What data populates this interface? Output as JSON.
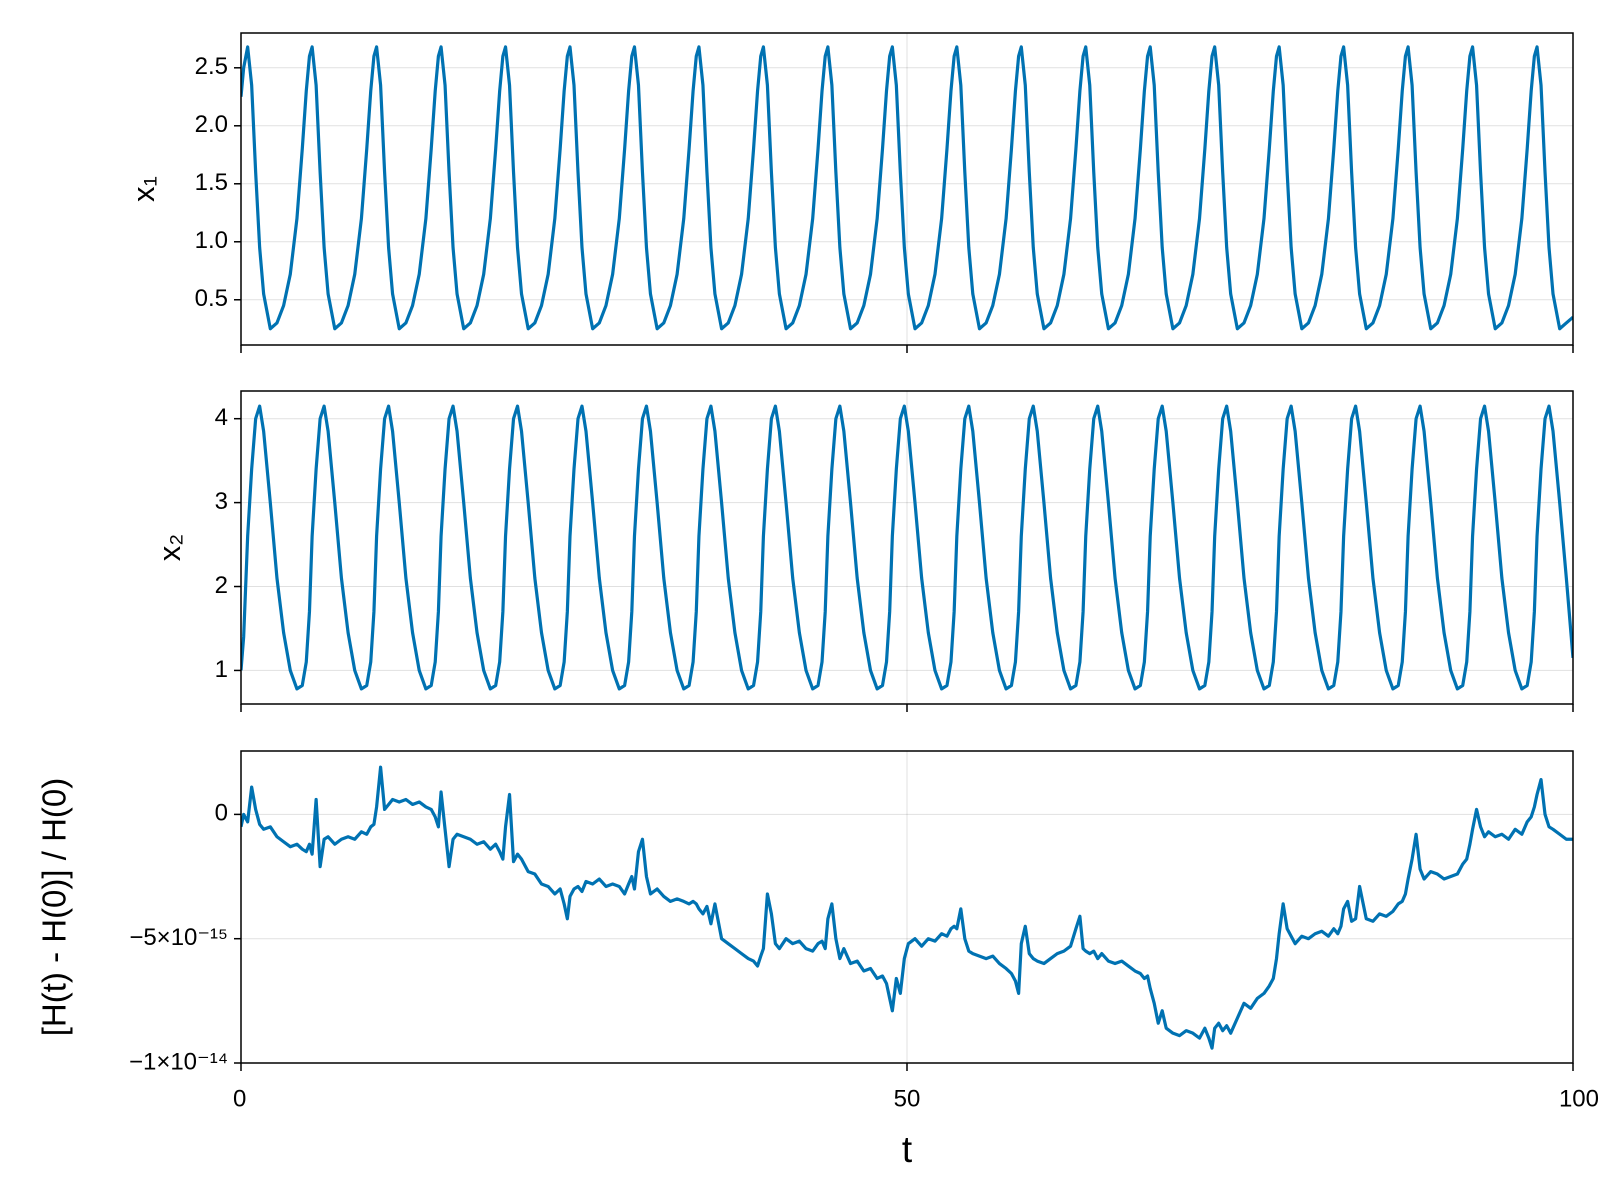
{
  "chart_data": {
    "type": "line",
    "color": "#0072b2",
    "grid": true,
    "xlabel": "t",
    "xlim": [
      0,
      100
    ],
    "xticks": [
      0,
      50,
      100
    ],
    "x": [
      0,
      0.2,
      0.5,
      0.8,
      1.1,
      1.4,
      1.7,
      2.2,
      2.7,
      3.2,
      3.7,
      4.2,
      4.6,
      4.9,
      5.14,
      5.34,
      5.64,
      5.94,
      6.24,
      6.54,
      7.04,
      7.54,
      8.04,
      8.54,
      9.04,
      9.44,
      9.74,
      9.98,
      10.18,
      10.48,
      10.78,
      11.08,
      11.38,
      11.88,
      12.38,
      12.88,
      13.38,
      13.88,
      14.28,
      14.58,
      14.82,
      15.02,
      15.32,
      15.62,
      15.92,
      16.22,
      16.72,
      17.22,
      17.72,
      18.22,
      18.72,
      19.12,
      19.42,
      19.66,
      19.86,
      20.16,
      20.46,
      20.76,
      21.06,
      21.56,
      22.06,
      22.56,
      23.06,
      23.56,
      23.96,
      24.26,
      24.5,
      24.7,
      25,
      25.3,
      25.6,
      25.9,
      26.4,
      26.9,
      27.4,
      27.9,
      28.4,
      28.8,
      29.1,
      29.34,
      29.54,
      29.84,
      30.14,
      30.44,
      30.74,
      31.24,
      31.74,
      32.24,
      32.74,
      33.24,
      33.64,
      33.94,
      34.18,
      34.38,
      34.68,
      34.98,
      35.28,
      35.58,
      36.08,
      36.58,
      37.08,
      37.58,
      38.08,
      38.48,
      38.78,
      39.02,
      39.22,
      39.52,
      39.82,
      40.12,
      40.42,
      40.92,
      41.42,
      41.92,
      42.42,
      42.92,
      43.32,
      43.62,
      43.86,
      44.06,
      44.36,
      44.66,
      44.96,
      45.26,
      45.76,
      46.26,
      46.76,
      47.26,
      47.76,
      48.16,
      48.46,
      48.7,
      48.9,
      49.2,
      49.5,
      49.8,
      50.1,
      50.6,
      51.1,
      51.6,
      52.1,
      52.6,
      53,
      53.3,
      53.54,
      53.74,
      54.04,
      54.34,
      54.64,
      54.94,
      55.44,
      55.94,
      56.44,
      56.94,
      57.44,
      57.84,
      58.14,
      58.38,
      58.58,
      58.88,
      59.18,
      59.48,
      59.78,
      60.28,
      60.78,
      61.28,
      61.78,
      62.28,
      62.68,
      62.98,
      63.22,
      63.42,
      63.72,
      64.02,
      64.32,
      64.62,
      65.12,
      65.62,
      66.12,
      66.62,
      67.12,
      67.52,
      67.82,
      68.06,
      68.26,
      68.56,
      68.86,
      69.16,
      69.46,
      69.96,
      70.46,
      70.96,
      71.46,
      71.96,
      72.36,
      72.66,
      72.9,
      73.1,
      73.4,
      73.7,
      74,
      74.3,
      74.8,
      75.3,
      75.8,
      76.3,
      76.8,
      77.2,
      77.5,
      77.74,
      77.94,
      78.24,
      78.54,
      78.84,
      79.14,
      79.64,
      80.14,
      80.64,
      81.14,
      81.64,
      82.04,
      82.34,
      82.58,
      82.78,
      83.08,
      83.38,
      83.68,
      83.98,
      84.48,
      84.98,
      85.48,
      85.98,
      86.48,
      86.88,
      87.18,
      87.42,
      87.62,
      87.92,
      88.22,
      88.52,
      88.82,
      89.32,
      89.82,
      90.32,
      90.82,
      91.32,
      91.72,
      92.02,
      92.26,
      92.46,
      92.76,
      93.06,
      93.36,
      93.66,
      94.16,
      94.66,
      95.16,
      95.66,
      96.16,
      96.56,
      96.86,
      97.1,
      97.3,
      97.6,
      97.9,
      98.2,
      98.5,
      99,
      99.5,
      100
    ],
    "panels": [
      {
        "ylabel": "x₁",
        "ylim": [
          0.11,
          2.8
        ],
        "yticks": [
          0.5,
          {
            "value": 1,
            "label": "1.0"
          },
          1.5,
          {
            "value": 2,
            "label": "2.0"
          },
          2.5
        ],
        "values": [
          2.25,
          2.5,
          2.68,
          2.35,
          1.6,
          0.95,
          0.55,
          0.25,
          0.3,
          0.45,
          0.72,
          1.2,
          1.8,
          2.3,
          2.6,
          2.68,
          2.35,
          1.6,
          0.95,
          0.55,
          0.25,
          0.3,
          0.45,
          0.72,
          1.2,
          1.8,
          2.3,
          2.6,
          2.68,
          2.35,
          1.6,
          0.95,
          0.55,
          0.25,
          0.3,
          0.45,
          0.72,
          1.2,
          1.8,
          2.3,
          2.6,
          2.68,
          2.35,
          1.6,
          0.95,
          0.55,
          0.25,
          0.3,
          0.45,
          0.72,
          1.2,
          1.8,
          2.3,
          2.6,
          2.68,
          2.35,
          1.6,
          0.95,
          0.55,
          0.25,
          0.3,
          0.45,
          0.72,
          1.2,
          1.8,
          2.3,
          2.6,
          2.68,
          2.35,
          1.6,
          0.95,
          0.55,
          0.25,
          0.3,
          0.45,
          0.72,
          1.2,
          1.8,
          2.3,
          2.6,
          2.68,
          2.35,
          1.6,
          0.95,
          0.55,
          0.25,
          0.3,
          0.45,
          0.72,
          1.2,
          1.8,
          2.3,
          2.6,
          2.68,
          2.35,
          1.6,
          0.95,
          0.55,
          0.25,
          0.3,
          0.45,
          0.72,
          1.2,
          1.8,
          2.3,
          2.6,
          2.68,
          2.35,
          1.6,
          0.95,
          0.55,
          0.25,
          0.3,
          0.45,
          0.72,
          1.2,
          1.8,
          2.3,
          2.6,
          2.68,
          2.35,
          1.6,
          0.95,
          0.55,
          0.25,
          0.3,
          0.45,
          0.72,
          1.2,
          1.8,
          2.3,
          2.6,
          2.68,
          2.35,
          1.6,
          0.95,
          0.55,
          0.25,
          0.3,
          0.45,
          0.72,
          1.2,
          1.8,
          2.3,
          2.6,
          2.68,
          2.35,
          1.6,
          0.95,
          0.55,
          0.25,
          0.3,
          0.45,
          0.72,
          1.2,
          1.8,
          2.3,
          2.6,
          2.68,
          2.35,
          1.6,
          0.95,
          0.55,
          0.25,
          0.3,
          0.45,
          0.72,
          1.2,
          1.8,
          2.3,
          2.6,
          2.68,
          2.35,
          1.6,
          0.95,
          0.55,
          0.25,
          0.3,
          0.45,
          0.72,
          1.2,
          1.8,
          2.3,
          2.6,
          2.68,
          2.35,
          1.6,
          0.95,
          0.55,
          0.25,
          0.3,
          0.45,
          0.72,
          1.2,
          1.8,
          2.3,
          2.6,
          2.68,
          2.35,
          1.6,
          0.95,
          0.55,
          0.25,
          0.3,
          0.45,
          0.72,
          1.2,
          1.8,
          2.3,
          2.6,
          2.68,
          2.35,
          1.6,
          0.95,
          0.55,
          0.25,
          0.3,
          0.45,
          0.72,
          1.2,
          1.8,
          2.3,
          2.6,
          2.68,
          2.35,
          1.6,
          0.95,
          0.55,
          0.25,
          0.3,
          0.45,
          0.72,
          1.2,
          1.8,
          2.3,
          2.6,
          2.68,
          2.35,
          1.6,
          0.95,
          0.55,
          0.25,
          0.3,
          0.45,
          0.72,
          1.2,
          1.8,
          2.3,
          2.6,
          2.68,
          2.35,
          1.6,
          0.95,
          0.55,
          0.25,
          0.3,
          0.45,
          0.72,
          1.2,
          1.8,
          2.3,
          2.6,
          2.68,
          2.35,
          1.6,
          0.95,
          0.55,
          0.25,
          0.3,
          0.35
        ]
      },
      {
        "ylabel": "x₂",
        "ylim": [
          0.6,
          4.33
        ],
        "yticks": [
          1,
          2,
          3,
          4
        ],
        "values": [
          1.0,
          1.4,
          2.6,
          3.4,
          4.0,
          4.15,
          3.85,
          3.0,
          2.1,
          1.45,
          1.0,
          0.78,
          0.82,
          1.1,
          1.7,
          2.6,
          3.4,
          4.0,
          4.15,
          3.85,
          3.0,
          2.1,
          1.45,
          1.0,
          0.78,
          0.82,
          1.1,
          1.7,
          2.6,
          3.4,
          4.0,
          4.15,
          3.85,
          3.0,
          2.1,
          1.45,
          1.0,
          0.78,
          0.82,
          1.1,
          1.7,
          2.6,
          3.4,
          4.0,
          4.15,
          3.85,
          3.0,
          2.1,
          1.45,
          1.0,
          0.78,
          0.82,
          1.1,
          1.7,
          2.6,
          3.4,
          4.0,
          4.15,
          3.85,
          3.0,
          2.1,
          1.45,
          1.0,
          0.78,
          0.82,
          1.1,
          1.7,
          2.6,
          3.4,
          4.0,
          4.15,
          3.85,
          3.0,
          2.1,
          1.45,
          1.0,
          0.78,
          0.82,
          1.1,
          1.7,
          2.6,
          3.4,
          4.0,
          4.15,
          3.85,
          3.0,
          2.1,
          1.45,
          1.0,
          0.78,
          0.82,
          1.1,
          1.7,
          2.6,
          3.4,
          4.0,
          4.15,
          3.85,
          3.0,
          2.1,
          1.45,
          1.0,
          0.78,
          0.82,
          1.1,
          1.7,
          2.6,
          3.4,
          4.0,
          4.15,
          3.85,
          3.0,
          2.1,
          1.45,
          1.0,
          0.78,
          0.82,
          1.1,
          1.7,
          2.6,
          3.4,
          4.0,
          4.15,
          3.85,
          3.0,
          2.1,
          1.45,
          1.0,
          0.78,
          0.82,
          1.1,
          1.7,
          2.6,
          3.4,
          4.0,
          4.15,
          3.85,
          3.0,
          2.1,
          1.45,
          1.0,
          0.78,
          0.82,
          1.1,
          1.7,
          2.6,
          3.4,
          4.0,
          4.15,
          3.85,
          3.0,
          2.1,
          1.45,
          1.0,
          0.78,
          0.82,
          1.1,
          1.7,
          2.6,
          3.4,
          4.0,
          4.15,
          3.85,
          3.0,
          2.1,
          1.45,
          1.0,
          0.78,
          0.82,
          1.1,
          1.7,
          2.6,
          3.4,
          4.0,
          4.15,
          3.85,
          3.0,
          2.1,
          1.45,
          1.0,
          0.78,
          0.82,
          1.1,
          1.7,
          2.6,
          3.4,
          4.0,
          4.15,
          3.85,
          3.0,
          2.1,
          1.45,
          1.0,
          0.78,
          0.82,
          1.1,
          1.7,
          2.6,
          3.4,
          4.0,
          4.15,
          3.85,
          3.0,
          2.1,
          1.45,
          1.0,
          0.78,
          0.82,
          1.1,
          1.7,
          2.6,
          3.4,
          4.0,
          4.15,
          3.85,
          3.0,
          2.1,
          1.45,
          1.0,
          0.78,
          0.82,
          1.1,
          1.7,
          2.6,
          3.4,
          4.0,
          4.15,
          3.85,
          3.0,
          2.1,
          1.45,
          1.0,
          0.78,
          0.82,
          1.1,
          1.7,
          2.6,
          3.4,
          4.0,
          4.15,
          3.85,
          3.0,
          2.1,
          1.45,
          1.0,
          0.78,
          0.82,
          1.1,
          1.7,
          2.6,
          3.4,
          4.0,
          4.15,
          3.85,
          3.0,
          2.1,
          1.45,
          1.0,
          0.78,
          0.82,
          1.1,
          1.7,
          2.6,
          3.4,
          4.0,
          4.15,
          3.85,
          3.0,
          2.1,
          1.15
        ]
      },
      {
        "ylabel": "[H(t) - H(0)] / H(0)",
        "ylim": [
          -1e-14,
          2.55e-15
        ],
        "yticks": [
          {
            "value": -1e-14,
            "label": "−1×10⁻¹⁴"
          },
          {
            "value": -5e-15,
            "label": "−5×10⁻¹⁵"
          },
          0
        ],
        "values": [
          -5e-16,
          0,
          -3e-16,
          1.1e-15,
          2e-16,
          -4e-16,
          -6e-16,
          -5e-16,
          -9e-16,
          -1.1e-15,
          -1.3e-15,
          -1.2e-15,
          -1.4e-15,
          -1.5e-15,
          -1.2e-15,
          -1.6e-15,
          6e-16,
          -2.1e-15,
          -1e-15,
          -9e-16,
          -1.2e-15,
          -1e-15,
          -9e-16,
          -1e-15,
          -7e-16,
          -8e-16,
          -5e-16,
          -4e-16,
          3e-16,
          1.9e-15,
          2e-16,
          4e-16,
          6e-16,
          5e-16,
          6e-16,
          4e-16,
          5e-16,
          3e-16,
          2e-16,
          -1e-16,
          -5e-16,
          9e-16,
          -6e-16,
          -2.1e-15,
          -1e-15,
          -8e-16,
          -9e-16,
          -1e-15,
          -1.2e-15,
          -1.1e-15,
          -1.4e-15,
          -1.2e-15,
          -1.5e-15,
          -1.8e-15,
          -5e-16,
          8e-16,
          -1.9e-15,
          -1.6e-15,
          -1.8e-15,
          -2.3e-15,
          -2.4e-15,
          -2.8e-15,
          -2.9e-15,
          -3.2e-15,
          -3e-15,
          -3.6e-15,
          -4.2e-15,
          -3.3e-15,
          -3e-15,
          -2.9e-15,
          -3.1e-15,
          -2.7e-15,
          -2.8e-15,
          -2.6e-15,
          -2.9e-15,
          -2.8e-15,
          -2.9e-15,
          -3.2e-15,
          -2.8e-15,
          -2.5e-15,
          -3e-15,
          -1.5e-15,
          -1e-15,
          -2.5e-15,
          -3.2e-15,
          -3e-15,
          -3.3e-15,
          -3.5e-15,
          -3.4e-15,
          -3.5e-15,
          -3.6e-15,
          -3.5e-15,
          -3.6e-15,
          -3.8e-15,
          -4e-15,
          -3.7e-15,
          -4.4e-15,
          -3.6e-15,
          -5e-15,
          -5.2e-15,
          -5.4e-15,
          -5.6e-15,
          -5.8e-15,
          -5.9e-15,
          -6.1e-15,
          -5.7e-15,
          -5.4e-15,
          -3.2e-15,
          -4e-15,
          -5.2e-15,
          -5.4e-15,
          -5e-15,
          -5.2e-15,
          -5.1e-15,
          -5.4e-15,
          -5.5e-15,
          -5.2e-15,
          -5.1e-15,
          -5.4e-15,
          -4.2e-15,
          -3.6e-15,
          -5e-15,
          -5.8e-15,
          -5.4e-15,
          -6e-15,
          -5.9e-15,
          -6.3e-15,
          -6.2e-15,
          -6.6e-15,
          -6.5e-15,
          -6.8e-15,
          -7.4e-15,
          -7.9e-15,
          -6.6e-15,
          -7.2e-15,
          -5.8e-15,
          -5.2e-15,
          -5e-15,
          -5.3e-15,
          -5e-15,
          -5.1e-15,
          -4.8e-15,
          -4.9e-15,
          -4.6e-15,
          -4.5e-15,
          -4.6e-15,
          -3.8e-15,
          -5e-15,
          -5.5e-15,
          -5.6e-15,
          -5.7e-15,
          -5.8e-15,
          -5.7e-15,
          -6e-15,
          -6.2e-15,
          -6.4e-15,
          -6.7e-15,
          -7.2e-15,
          -5.2e-15,
          -4.5e-15,
          -5.6e-15,
          -5.8e-15,
          -5.9e-15,
          -6e-15,
          -5.8e-15,
          -5.6e-15,
          -5.5e-15,
          -5.3e-15,
          -4.6e-15,
          -4.1e-15,
          -5.4e-15,
          -5.5e-15,
          -5.6e-15,
          -5.5e-15,
          -5.8e-15,
          -5.6e-15,
          -5.9e-15,
          -6e-15,
          -5.9e-15,
          -6.1e-15,
          -6.3e-15,
          -6.4e-15,
          -6.6e-15,
          -6.5e-15,
          -7e-15,
          -7.6e-15,
          -8.4e-15,
          -7.9e-15,
          -8.6e-15,
          -8.8e-15,
          -8.9e-15,
          -8.7e-15,
          -8.8e-15,
          -9e-15,
          -8.6e-15,
          -9e-15,
          -9.4e-15,
          -8.6e-15,
          -8.4e-15,
          -8.7e-15,
          -8.5e-15,
          -8.8e-15,
          -8.2e-15,
          -7.6e-15,
          -7.8e-15,
          -7.4e-15,
          -7.2e-15,
          -6.9e-15,
          -6.6e-15,
          -5.8e-15,
          -4.8e-15,
          -3.6e-15,
          -4.6e-15,
          -4.9e-15,
          -5.2e-15,
          -4.9e-15,
          -5e-15,
          -4.8e-15,
          -4.7e-15,
          -4.9e-15,
          -4.6e-15,
          -4.8e-15,
          -4.5e-15,
          -3.8e-15,
          -3.5e-15,
          -4.3e-15,
          -4.2e-15,
          -2.9e-15,
          -4.2e-15,
          -4.3e-15,
          -4e-15,
          -4.1e-15,
          -3.9e-15,
          -3.6e-15,
          -3.5e-15,
          -3.2e-15,
          -2.6e-15,
          -1.8e-15,
          -8e-16,
          -2.2e-15,
          -2.6e-15,
          -2.3e-15,
          -2.4e-15,
          -2.6e-15,
          -2.5e-15,
          -2.4e-15,
          -2e-15,
          -1.8e-15,
          -1.2e-15,
          -6e-16,
          2e-16,
          -5e-16,
          -9e-16,
          -7e-16,
          -9e-16,
          -8e-16,
          -1e-15,
          -6e-16,
          -8e-16,
          -3e-16,
          -1e-16,
          3e-16,
          8e-16,
          1.4e-15,
          0,
          -5e-16,
          -6e-16,
          -8e-16,
          -1e-15,
          -1e-15
        ]
      }
    ]
  }
}
